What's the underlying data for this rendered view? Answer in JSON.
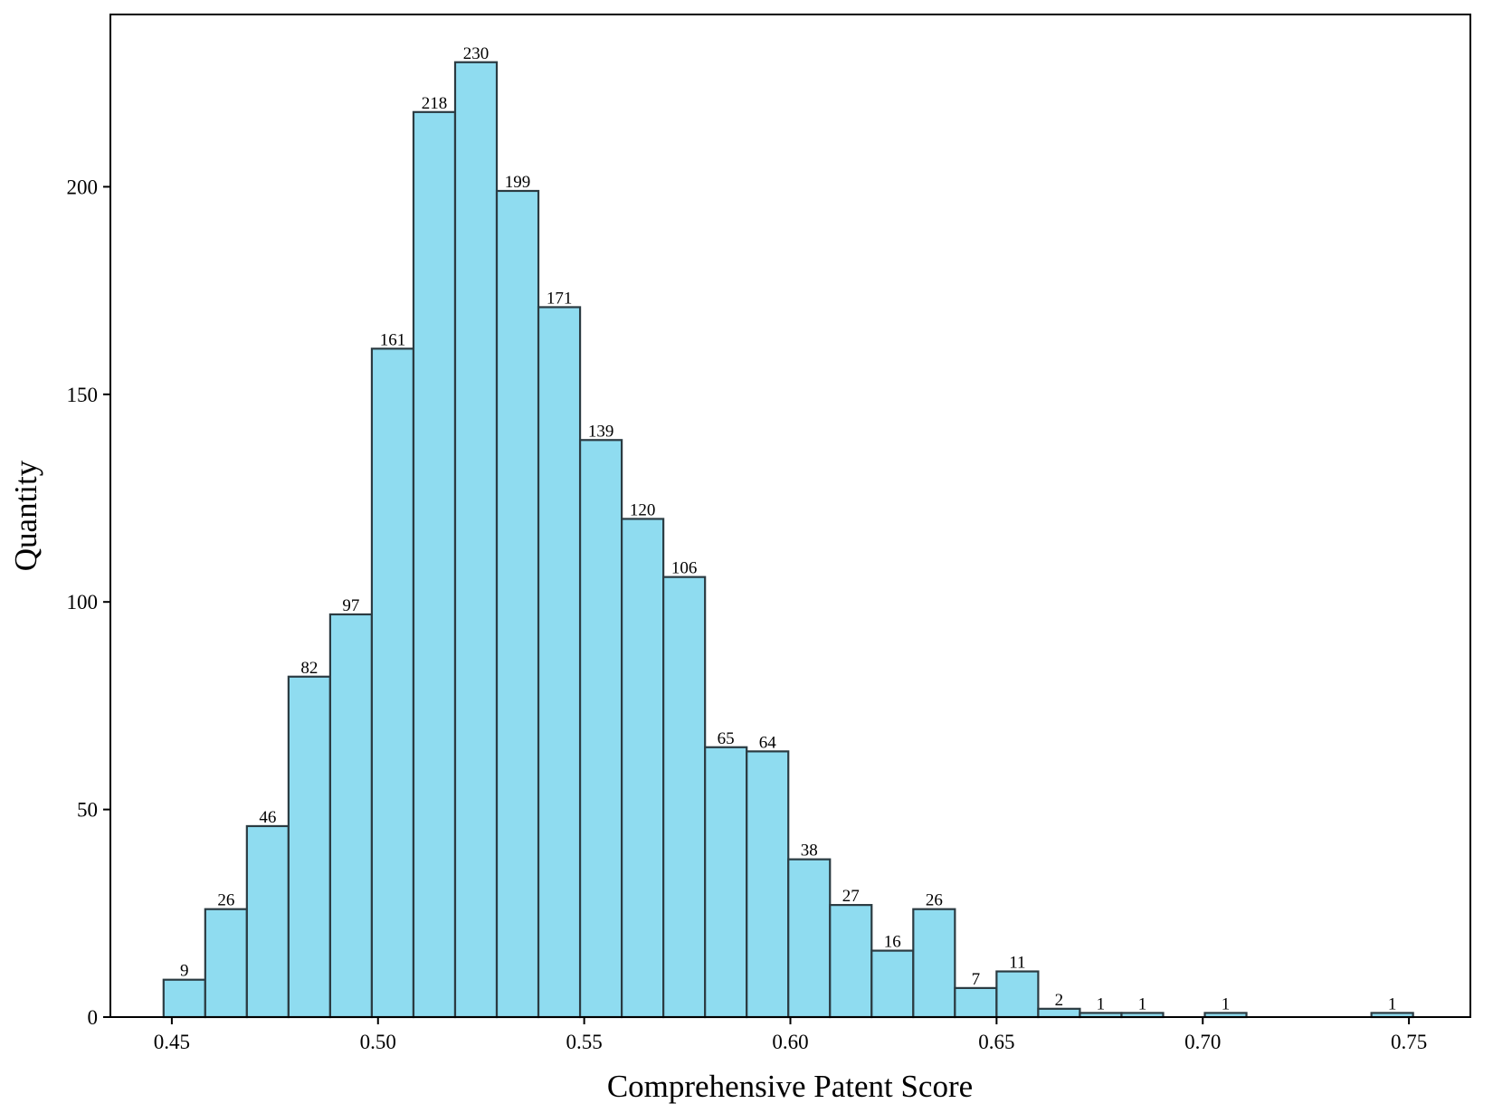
{
  "chart_data": {
    "type": "bar",
    "title": "",
    "xlabel": "Comprehensive Patent Score",
    "ylabel": "Quantity",
    "xlim": [
      0.4351,
      0.7649
    ],
    "ylim": [
      0,
      241.5
    ],
    "xticks": [
      {
        "value": 0.45,
        "label": "0.45"
      },
      {
        "value": 0.5,
        "label": "0.50"
      },
      {
        "value": 0.55,
        "label": "0.55"
      },
      {
        "value": 0.6,
        "label": "0.60"
      },
      {
        "value": 0.65,
        "label": "0.65"
      },
      {
        "value": 0.7,
        "label": "0.70"
      },
      {
        "value": 0.75,
        "label": "0.75"
      }
    ],
    "yticks": [
      {
        "value": 0,
        "label": "0"
      },
      {
        "value": 50,
        "label": "50"
      },
      {
        "value": 100,
        "label": "100"
      },
      {
        "value": 150,
        "label": "150"
      },
      {
        "value": 200,
        "label": "200"
      }
    ],
    "bins": [
      {
        "start": 0.448,
        "end": 0.4581,
        "value": 9,
        "label": "9"
      },
      {
        "start": 0.4581,
        "end": 0.4682,
        "value": 26,
        "label": "26"
      },
      {
        "start": 0.4682,
        "end": 0.4783,
        "value": 46,
        "label": "46"
      },
      {
        "start": 0.4783,
        "end": 0.4884,
        "value": 82,
        "label": "82"
      },
      {
        "start": 0.4884,
        "end": 0.4985,
        "value": 97,
        "label": "97"
      },
      {
        "start": 0.4985,
        "end": 0.5086,
        "value": 161,
        "label": "161"
      },
      {
        "start": 0.5086,
        "end": 0.5187,
        "value": 218,
        "label": "218"
      },
      {
        "start": 0.5187,
        "end": 0.5288,
        "value": 230,
        "label": "230"
      },
      {
        "start": 0.5288,
        "end": 0.5389,
        "value": 199,
        "label": "199"
      },
      {
        "start": 0.5389,
        "end": 0.549,
        "value": 171,
        "label": "171"
      },
      {
        "start": 0.549,
        "end": 0.5591,
        "value": 139,
        "label": "139"
      },
      {
        "start": 0.5591,
        "end": 0.5692,
        "value": 120,
        "label": "120"
      },
      {
        "start": 0.5692,
        "end": 0.5793,
        "value": 106,
        "label": "106"
      },
      {
        "start": 0.5793,
        "end": 0.5894,
        "value": 65,
        "label": "65"
      },
      {
        "start": 0.5894,
        "end": 0.5995,
        "value": 64,
        "label": "64"
      },
      {
        "start": 0.5995,
        "end": 0.6096,
        "value": 38,
        "label": "38"
      },
      {
        "start": 0.6096,
        "end": 0.6197,
        "value": 27,
        "label": "27"
      },
      {
        "start": 0.6197,
        "end": 0.6298,
        "value": 16,
        "label": "16"
      },
      {
        "start": 0.6298,
        "end": 0.6399,
        "value": 26,
        "label": "26"
      },
      {
        "start": 0.6399,
        "end": 0.65,
        "value": 7,
        "label": "7"
      },
      {
        "start": 0.65,
        "end": 0.6601,
        "value": 11,
        "label": "11"
      },
      {
        "start": 0.6601,
        "end": 0.6702,
        "value": 2,
        "label": "2"
      },
      {
        "start": 0.6702,
        "end": 0.6803,
        "value": 1,
        "label": "1"
      },
      {
        "start": 0.6803,
        "end": 0.6904,
        "value": 1,
        "label": "1"
      },
      {
        "start": 0.7005,
        "end": 0.7106,
        "value": 1,
        "label": "1"
      },
      {
        "start": 0.7409,
        "end": 0.751,
        "value": 1,
        "label": "1"
      }
    ],
    "colors": {
      "bar_fill": "#8fdcf0",
      "bar_edge": "#2b3b42",
      "axis": "#000000"
    },
    "grid": false,
    "legend": "none"
  }
}
